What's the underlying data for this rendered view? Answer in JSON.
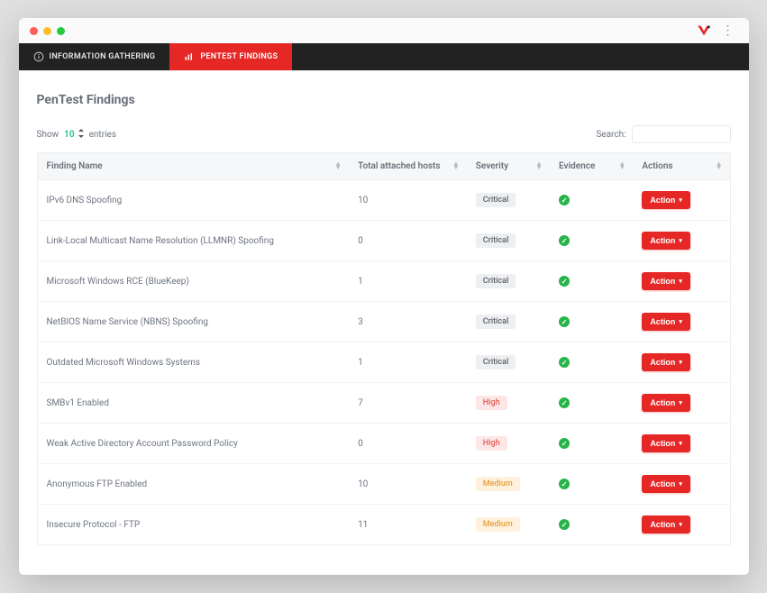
{
  "colors": {
    "accent": "#e52726",
    "tabbar_bg": "#222222",
    "success": "#28b44a",
    "entries_number": "#1fbf8f",
    "body_bg": "#e0e0e0",
    "window_bg": "#fafafa",
    "content_bg": "#ffffff",
    "text_muted": "#6d7480",
    "border": "#edeeef"
  },
  "tabs": [
    {
      "label": "INFORMATION GATHERING",
      "icon": "info-circle-icon",
      "active": false
    },
    {
      "label": "PENTEST FINDINGS",
      "icon": "chart-icon",
      "active": true
    }
  ],
  "page_title": "PenTest Findings",
  "entries": {
    "show_label": "Show",
    "suffix_label": "entries",
    "value": "10"
  },
  "search_label": "Search:",
  "columns": {
    "name": "Finding Name",
    "hosts": "Total attached hosts",
    "severity": "Severity",
    "evidence": "Evidence",
    "actions": "Actions"
  },
  "action_button_label": "Action",
  "severity_styles": {
    "Critical": {
      "bg": "#eeeff1",
      "fg": "#5c616b"
    },
    "High": {
      "bg": "#fde7e6",
      "fg": "#e05a56"
    },
    "Medium": {
      "bg": "#fff1dd",
      "fg": "#e6a03a"
    }
  },
  "findings": [
    {
      "name": "IPv6 DNS Spoofing",
      "hosts": "10",
      "severity": "Critical",
      "evidence": true
    },
    {
      "name": "Link-Local Multicast Name Resolution (LLMNR) Spoofing",
      "hosts": "0",
      "severity": "Critical",
      "evidence": true
    },
    {
      "name": "Microsoft Windows RCE (BlueKeep)",
      "hosts": "1",
      "severity": "Critical",
      "evidence": true
    },
    {
      "name": "NetBIOS Name Service (NBNS) Spoofing",
      "hosts": "3",
      "severity": "Critical",
      "evidence": true
    },
    {
      "name": "Outdated Microsoft Windows Systems",
      "hosts": "1",
      "severity": "Critical",
      "evidence": true
    },
    {
      "name": "SMBv1 Enabled",
      "hosts": "7",
      "severity": "High",
      "evidence": true
    },
    {
      "name": "Weak Active Directory Account Password Policy",
      "hosts": "0",
      "severity": "High",
      "evidence": true
    },
    {
      "name": "Anonymous FTP Enabled",
      "hosts": "10",
      "severity": "Medium",
      "evidence": true
    },
    {
      "name": "Insecure Protocol - FTP",
      "hosts": "11",
      "severity": "Medium",
      "evidence": true
    }
  ]
}
